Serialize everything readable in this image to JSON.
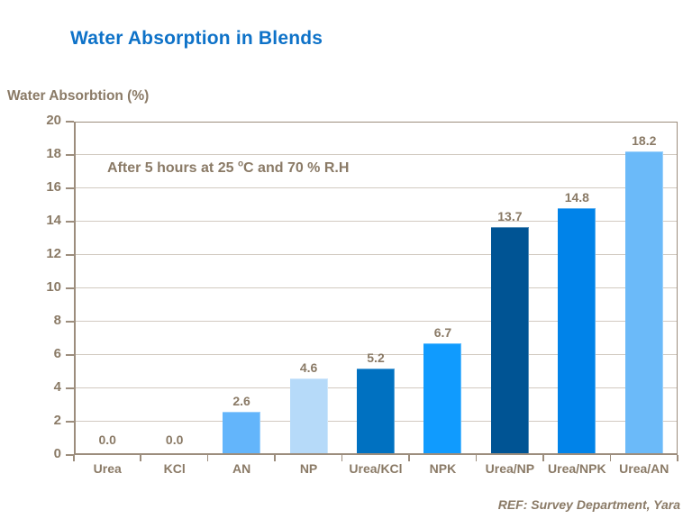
{
  "chart_data": {
    "type": "bar",
    "title": "Water Absorption in Blends",
    "ylabel": "Water Absorbtion (%)",
    "xlabel": "",
    "categories": [
      "Urea",
      "KCl",
      "AN",
      "NP",
      "Urea/KCl",
      "NPK",
      "Urea/NP",
      "Urea/NPK",
      "Urea/AN"
    ],
    "values": [
      0.0,
      0.0,
      2.6,
      4.6,
      5.2,
      6.7,
      13.7,
      14.8,
      18.2
    ],
    "value_labels": [
      "0.0",
      "0.0",
      "2.6",
      "4.6",
      "5.2",
      "6.7",
      "13.7",
      "14.8",
      "18.2"
    ],
    "bar_colors": [
      "#63b5fb",
      "#63b5fb",
      "#63b5fb",
      "#b6daf9",
      "#0071c1",
      "#109bfe",
      "#005494",
      "#0083e9",
      "#6bbaf9"
    ],
    "ylim": [
      0,
      20
    ],
    "ytick_step": 2,
    "grid": true,
    "legend": false,
    "annotation": {
      "prefix": "After 5 hours at 25 ",
      "superscript": "o",
      "suffix": "C and 70 % R.H"
    }
  },
  "footer_ref": "REF: Survey Department, Yara",
  "colors": {
    "title_text": "#0e72c8",
    "body_text": "#8a7a66",
    "axis_line": "#9c8d7d",
    "gridline": "#d2cac1",
    "background": "#ffffff"
  }
}
